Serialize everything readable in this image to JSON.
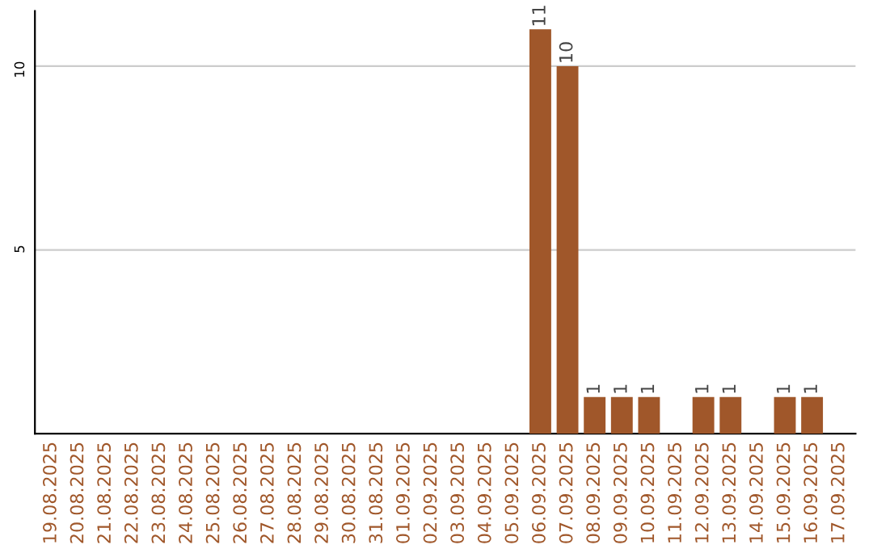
{
  "chart_data": {
    "type": "bar",
    "categories": [
      "19.08.2025",
      "20.08.2025",
      "21.08.2025",
      "22.08.2025",
      "23.08.2025",
      "24.08.2025",
      "25.08.2025",
      "26.08.2025",
      "27.08.2025",
      "28.08.2025",
      "29.08.2025",
      "30.08.2025",
      "31.08.2025",
      "01.09.2025",
      "02.09.2025",
      "03.09.2025",
      "04.09.2025",
      "05.09.2025",
      "06.09.2025",
      "07.09.2025",
      "08.09.2025",
      "09.09.2025",
      "10.09.2025",
      "11.09.2025",
      "12.09.2025",
      "13.09.2025",
      "14.09.2025",
      "15.09.2025",
      "16.09.2025",
      "17.09.2025"
    ],
    "values": [
      0,
      0,
      0,
      0,
      0,
      0,
      0,
      0,
      0,
      0,
      0,
      0,
      0,
      0,
      0,
      0,
      0,
      0,
      11,
      10,
      1,
      1,
      1,
      0,
      1,
      1,
      0,
      1,
      1,
      0
    ],
    "value_labels": [
      null,
      null,
      null,
      null,
      null,
      null,
      null,
      null,
      null,
      null,
      null,
      null,
      null,
      null,
      null,
      null,
      null,
      null,
      "11",
      "10",
      "1",
      "1",
      "1",
      null,
      "1",
      "1",
      null,
      "1",
      "1",
      null
    ],
    "color": "#a0572a",
    "ylim": [
      0,
      11.5
    ],
    "yticks": [
      5,
      10
    ],
    "grid": "y"
  }
}
